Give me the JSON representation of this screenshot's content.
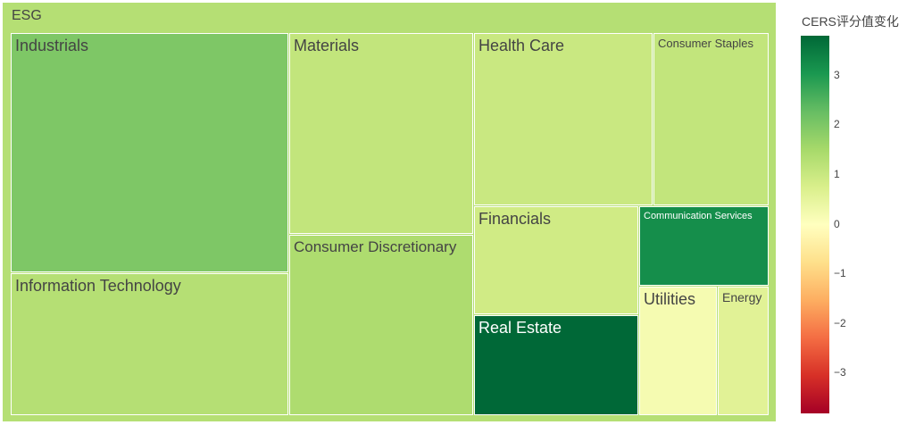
{
  "chart_data": {
    "type": "treemap",
    "root": {
      "label": "ESG",
      "value": 1.3
    },
    "items": [
      {
        "label": "Industrials",
        "value": 2.0
      },
      {
        "label": "Information Technology",
        "value": 1.3
      },
      {
        "label": "Materials",
        "value": 1.1
      },
      {
        "label": "Consumer Discretionary",
        "value": 1.4
      },
      {
        "label": "Health Care",
        "value": 1.0
      },
      {
        "label": "Consumer Staples",
        "value": 1.1
      },
      {
        "label": "Financials",
        "value": 0.9
      },
      {
        "label": "Communication Services",
        "value": 3.2
      },
      {
        "label": "Real Estate",
        "value": 3.8
      },
      {
        "label": "Utilities",
        "value": 0.2
      },
      {
        "label": "Energy",
        "value": 0.6
      }
    ],
    "colorbar": {
      "title": "CERS评分值变化",
      "range": [
        -3.8,
        3.8
      ],
      "ticks": [
        {
          "value": 3,
          "label": "3"
        },
        {
          "value": 2,
          "label": "2"
        },
        {
          "value": 1,
          "label": "1"
        },
        {
          "value": 0,
          "label": "0"
        },
        {
          "value": -1,
          "label": "−1"
        },
        {
          "value": -2,
          "label": "−2"
        },
        {
          "value": -3,
          "label": "−3"
        }
      ],
      "colorscale": "RdYlGn",
      "stops": [
        "#a50026",
        "#d73027",
        "#f46d43",
        "#fdae61",
        "#fee08b",
        "#ffffbf",
        "#d9ef8b",
        "#a6d96a",
        "#66bd63",
        "#1a9850",
        "#006837"
      ]
    }
  }
}
